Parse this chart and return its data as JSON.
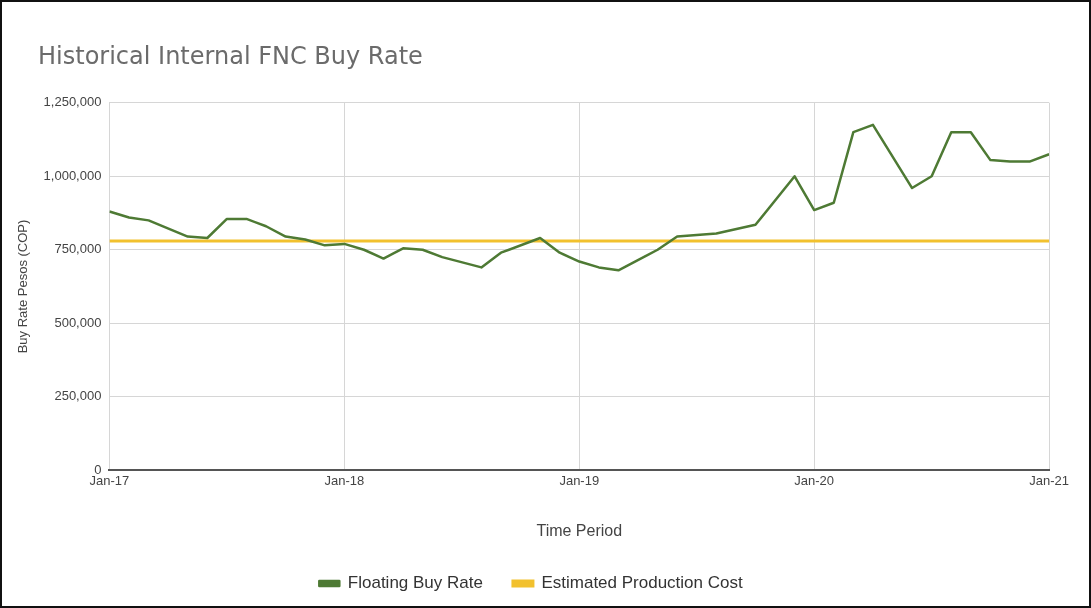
{
  "chart_data": {
    "type": "line",
    "title": "Historical Internal FNC Buy Rate",
    "xlabel": "Time Period",
    "ylabel": "Buy Rate Pesos (COP)",
    "x": [
      "2017-01",
      "2017-02",
      "2017-03",
      "2017-05",
      "2017-06",
      "2017-07",
      "2017-08",
      "2017-09",
      "2017-10",
      "2017-11",
      "2017-12",
      "2018-01",
      "2018-02",
      "2018-03",
      "2018-04",
      "2018-05",
      "2018-06",
      "2018-08",
      "2018-09",
      "2018-11",
      "2018-12",
      "2019-01",
      "2019-02",
      "2019-03",
      "2019-05",
      "2019-06",
      "2019-08",
      "2019-10",
      "2019-12",
      "2020-01",
      "2020-02",
      "2020-03",
      "2020-04",
      "2020-06",
      "2020-07",
      "2020-08",
      "2020-09",
      "2020-10",
      "2020-11",
      "2020-12",
      "2021-01"
    ],
    "series": [
      {
        "name": "Floating Buy Rate",
        "color": "#4e7a34",
        "values": [
          880000,
          860000,
          850000,
          795000,
          790000,
          855000,
          855000,
          830000,
          795000,
          785000,
          765000,
          770000,
          750000,
          720000,
          755000,
          750000,
          725000,
          690000,
          740000,
          790000,
          740000,
          710000,
          690000,
          680000,
          750000,
          795000,
          805000,
          835000,
          1000000,
          885000,
          910000,
          1150000,
          1175000,
          960000,
          1000000,
          1150000,
          1150000,
          1055000,
          1050000,
          1050000,
          1075000
        ]
      }
    ],
    "ref_lines": [
      {
        "axis": "y",
        "value": 780000,
        "label": "Estimated Production Cost",
        "color": "#f2c12e"
      }
    ],
    "xlim": [
      "2017-01",
      "2021-01"
    ],
    "xticks": [
      {
        "value": "2017-01",
        "label": "Jan-17"
      },
      {
        "value": "2018-01",
        "label": "Jan-18"
      },
      {
        "value": "2019-01",
        "label": "Jan-19"
      },
      {
        "value": "2020-01",
        "label": "Jan-20"
      },
      {
        "value": "2021-01",
        "label": "Jan-21"
      }
    ],
    "ylim": [
      0,
      1250000
    ],
    "yticks": [
      {
        "value": 0,
        "label": "0"
      },
      {
        "value": 250000,
        "label": "250,000"
      },
      {
        "value": 500000,
        "label": "500,000"
      },
      {
        "value": 750000,
        "label": "750,000"
      },
      {
        "value": 1000000,
        "label": "1,000,000"
      },
      {
        "value": 1250000,
        "label": "1,250,000"
      }
    ],
    "grid": true,
    "legend": "bottom",
    "marker": "none",
    "line_style": "solid"
  }
}
